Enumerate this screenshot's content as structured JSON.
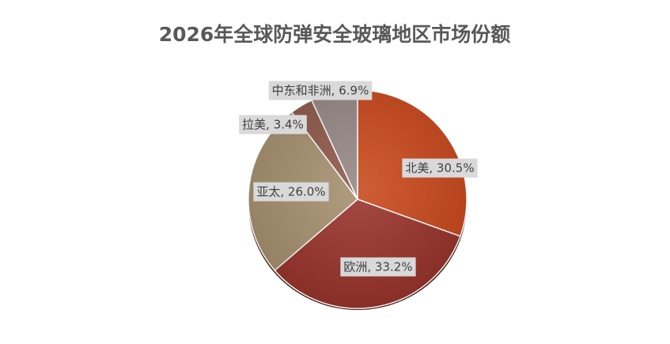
{
  "chart_data": {
    "type": "pie",
    "title": "2026年全球防弹安全玻璃地区市场份额",
    "categories": [
      "北美",
      "欧洲",
      "亚太",
      "拉美",
      "中东和非洲"
    ],
    "values": [
      30.5,
      33.2,
      26.0,
      3.4,
      6.9
    ],
    "value_labels": [
      "北美, 30.5%",
      "欧洲, 33.2%",
      "亚太, 26.0%",
      "拉美, 3.4%",
      "中东和非洲, 6.9%"
    ],
    "colors": [
      "#c9471b",
      "#98322a",
      "#a58f6e",
      "#8e5949",
      "#958886"
    ]
  }
}
